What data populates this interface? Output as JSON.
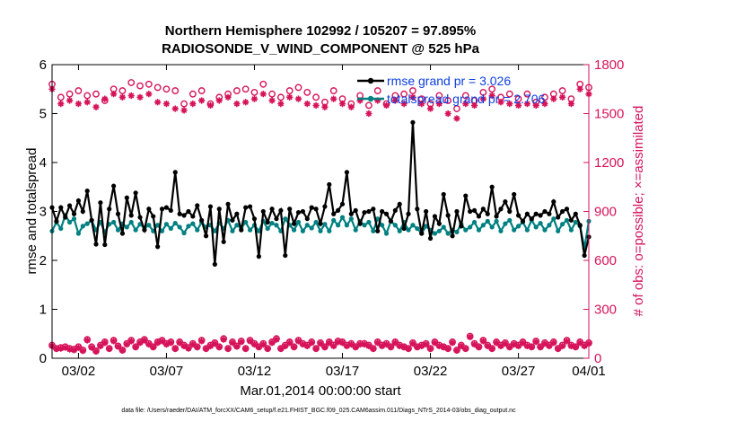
{
  "chart_data": {
    "type": "line",
    "title": [
      "Northern Hemisphere 102992 / 105207 = 97.895%",
      "RADIOSONDE_V_WIND_COMPONENT @ 525 hPa"
    ],
    "xlabel": "Mar.01,2014 00:00:00 start",
    "ylabel_left": "rmse and totalspread",
    "ylabel_right": "# of obs: o=possible; ×=assimilated",
    "xlim": [
      0.5,
      31
    ],
    "ylim_left": [
      0,
      6
    ],
    "ylim_right": [
      0,
      1800
    ],
    "x_ticks": [
      {
        "x": 2,
        "label": "03/02"
      },
      {
        "x": 7,
        "label": "03/07"
      },
      {
        "x": 12,
        "label": "03/12"
      },
      {
        "x": 17,
        "label": "03/17"
      },
      {
        "x": 22,
        "label": "03/22"
      },
      {
        "x": 27,
        "label": "03/27"
      },
      {
        "x": 31,
        "label": "04/01"
      }
    ],
    "y_ticks_left": [
      "0",
      "1",
      "2",
      "3",
      "4",
      "5",
      "6"
    ],
    "y_ticks_right": [
      "0",
      "300",
      "600",
      "900",
      "1200",
      "1500",
      "1800"
    ],
    "legend": [
      "rmse grand pr = 3.026",
      "totalspread grand pr = 2.706"
    ],
    "colors": {
      "rmse": "#000000",
      "spread": "#008080",
      "obs": "#d6135a",
      "legend_text": "#0b3fe0"
    },
    "x": [
      0.5,
      0.75,
      1.0,
      1.25,
      1.5,
      1.75,
      2.0,
      2.25,
      2.5,
      2.75,
      3.0,
      3.25,
      3.5,
      3.75,
      4.0,
      4.25,
      4.5,
      4.75,
      5.0,
      5.25,
      5.5,
      5.75,
      6.0,
      6.25,
      6.5,
      6.75,
      7.0,
      7.25,
      7.5,
      7.75,
      8.0,
      8.25,
      8.5,
      8.75,
      9.0,
      9.25,
      9.5,
      9.75,
      10.0,
      10.25,
      10.5,
      10.75,
      11.0,
      11.25,
      11.5,
      11.75,
      12.0,
      12.25,
      12.5,
      12.75,
      13.0,
      13.25,
      13.5,
      13.75,
      14.0,
      14.25,
      14.5,
      14.75,
      15.0,
      15.25,
      15.5,
      15.75,
      16.0,
      16.25,
      16.5,
      16.75,
      17.0,
      17.25,
      17.5,
      17.75,
      18.0,
      18.25,
      18.5,
      18.75,
      19.0,
      19.25,
      19.5,
      19.75,
      20.0,
      20.25,
      20.5,
      20.75,
      21.0,
      21.25,
      21.5,
      21.75,
      22.0,
      22.25,
      22.5,
      22.75,
      23.0,
      23.25,
      23.5,
      23.75,
      24.0,
      24.25,
      24.5,
      24.75,
      25.0,
      25.25,
      25.5,
      25.75,
      26.0,
      26.25,
      26.5,
      26.75,
      27.0,
      27.25,
      27.5,
      27.75,
      28.0,
      28.25,
      28.5,
      28.75,
      29.0,
      29.25,
      29.5,
      29.75,
      30.0,
      30.25,
      30.5,
      30.75,
      31.0
    ],
    "series": [
      {
        "name": "rmse",
        "axis": "left",
        "values": [
          3.08,
          2.8,
          3.08,
          2.88,
          3.12,
          2.95,
          3.22,
          3.0,
          3.42,
          2.82,
          2.33,
          3.18,
          2.32,
          3.05,
          3.52,
          2.95,
          2.55,
          3.28,
          2.92,
          3.38,
          2.88,
          2.62,
          3.05,
          2.9,
          2.28,
          3.05,
          3.08,
          3.02,
          3.8,
          2.95,
          2.92,
          3.0,
          2.9,
          3.12,
          2.82,
          2.5,
          3.1,
          1.92,
          3.05,
          2.38,
          3.15,
          2.82,
          2.95,
          2.62,
          3.08,
          3.1,
          2.85,
          2.08,
          3.0,
          2.78,
          3.05,
          2.85,
          3.02,
          2.1,
          3.05,
          2.75,
          2.98,
          3.0,
          2.85,
          3.08,
          3.05,
          2.75,
          3.1,
          3.55,
          2.95,
          3.02,
          3.15,
          3.8,
          2.95,
          3.02,
          2.75,
          2.98,
          3.0,
          3.05,
          2.6,
          3.0,
          2.95,
          2.8,
          3.02,
          3.15,
          2.65,
          2.95,
          4.82,
          3.05,
          2.55,
          3.0,
          2.45,
          2.9,
          2.75,
          3.35,
          2.92,
          2.5,
          3.0,
          2.7,
          3.32,
          3.0,
          3.02,
          2.9,
          3.05,
          2.95,
          3.5,
          2.9,
          3.05,
          3.2,
          3.0,
          3.35,
          2.92,
          2.8,
          2.95,
          2.85,
          2.95,
          2.92,
          3.0,
          2.95,
          3.2,
          2.88,
          3.0,
          3.05,
          2.82,
          2.95,
          2.72,
          2.1,
          2.48
        ]
      },
      {
        "name": "totalspread",
        "axis": "left",
        "values": [
          2.6,
          2.78,
          2.65,
          2.92,
          2.78,
          2.85,
          2.55,
          2.7,
          2.75,
          2.82,
          2.62,
          2.78,
          2.58,
          2.74,
          2.78,
          2.62,
          2.75,
          2.68,
          2.78,
          2.62,
          2.74,
          2.66,
          2.72,
          2.6,
          2.72,
          2.6,
          2.74,
          2.65,
          2.76,
          2.68,
          2.56,
          2.7,
          2.75,
          2.62,
          2.78,
          2.68,
          2.72,
          2.6,
          2.76,
          2.65,
          2.82,
          2.6,
          2.72,
          2.66,
          2.78,
          2.62,
          2.72,
          2.6,
          2.8,
          2.65,
          2.76,
          2.72,
          2.6,
          2.85,
          2.72,
          2.62,
          2.78,
          2.6,
          2.72,
          2.66,
          2.78,
          2.6,
          2.74,
          2.6,
          2.82,
          2.72,
          2.88,
          2.72,
          2.85,
          2.62,
          2.8,
          2.72,
          2.78,
          2.6,
          2.85,
          2.72,
          2.55,
          2.8,
          2.72,
          2.6,
          2.78,
          2.62,
          2.72,
          2.65,
          2.55,
          2.7,
          2.62,
          2.55,
          2.6,
          2.68,
          2.55,
          2.62,
          2.58,
          2.74,
          2.62,
          2.68,
          2.78,
          2.62,
          2.72,
          2.8,
          2.68,
          2.8,
          2.6,
          2.75,
          2.82,
          2.62,
          2.7,
          2.78,
          2.62,
          2.82,
          2.68,
          2.76,
          2.62,
          2.72,
          2.85,
          2.6,
          2.74,
          2.82,
          2.62,
          2.78,
          2.7,
          2.25,
          2.8
        ]
      },
      {
        "name": "obs_possible",
        "axis": "right",
        "values": [
          80,
          60,
          65,
          70,
          60,
          55,
          70,
          50,
          115,
          70,
          45,
          80,
          100,
          60,
          110,
          75,
          50,
          90,
          110,
          70,
          100,
          115,
          90,
          70,
          100,
          110,
          90,
          100,
          60,
          100,
          80,
          65,
          90,
          70,
          110,
          60,
          80,
          95,
          70,
          120,
          60,
          100,
          75,
          105,
          60,
          110,
          90,
          70,
          90,
          60,
          100,
          120,
          60,
          80,
          100,
          70,
          110,
          90,
          80,
          100,
          60,
          95,
          70,
          100,
          80,
          105,
          100,
          80,
          90,
          70,
          90,
          90,
          80,
          60,
          100,
          80,
          90,
          70,
          100,
          80,
          70,
          60,
          95,
          70,
          80,
          90,
          60,
          100,
          80,
          70,
          60,
          100,
          50,
          80,
          60,
          135,
          90,
          70,
          110,
          80,
          60,
          100,
          80,
          95,
          70,
          90,
          80,
          100,
          80,
          70,
          105,
          70,
          95,
          80,
          100,
          60,
          80,
          110,
          80,
          70,
          100,
          80,
          95
        ]
      },
      {
        "name": "obs_assimilated",
        "axis": "right",
        "values": [
          75,
          58,
          60,
          65,
          55,
          50,
          65,
          45,
          110,
          65,
          42,
          75,
          95,
          58,
          105,
          72,
          48,
          85,
          105,
          68,
          95,
          110,
          85,
          68,
          95,
          105,
          85,
          95,
          58,
          95,
          75,
          60,
          85,
          68,
          105,
          58,
          75,
          90,
          68,
          115,
          58,
          95,
          72,
          100,
          58,
          105,
          85,
          68,
          85,
          58,
          95,
          115,
          58,
          75,
          95,
          68,
          105,
          85,
          75,
          95,
          58,
          90,
          68,
          95,
          75,
          100,
          95,
          75,
          85,
          68,
          85,
          85,
          75,
          58,
          95,
          75,
          85,
          68,
          95,
          75,
          68,
          58,
          90,
          68,
          75,
          85,
          58,
          95,
          75,
          68,
          58,
          95,
          48,
          75,
          58,
          130,
          85,
          68,
          105,
          75,
          58,
          95,
          75,
          90,
          68,
          85,
          75,
          95,
          75,
          68,
          100,
          68,
          90,
          75,
          95,
          58,
          75,
          105,
          75,
          68,
          95,
          75,
          90
        ]
      },
      {
        "name": "obs_possible_top",
        "axis": "right",
        "x": [
          0.5,
          1.0,
          1.5,
          2.0,
          2.5,
          3.0,
          3.5,
          4.0,
          4.5,
          5.0,
          5.5,
          6.0,
          6.5,
          7.0,
          7.5,
          8.0,
          8.5,
          9.0,
          9.5,
          10.0,
          10.5,
          11.0,
          11.5,
          12.0,
          12.5,
          13.0,
          13.5,
          14.0,
          14.5,
          15.0,
          15.5,
          16.0,
          16.5,
          17.0,
          17.5,
          18.0,
          18.5,
          19.0,
          19.5,
          20.0,
          20.5,
          21.0,
          21.5,
          22.0,
          22.5,
          23.0,
          23.5,
          24.0,
          24.5,
          25.0,
          25.5,
          26.0,
          26.5,
          27.0,
          27.5,
          28.0,
          28.5,
          29.0,
          29.5,
          30.0,
          30.5,
          31.0
        ],
        "values": [
          1680,
          1600,
          1620,
          1640,
          1610,
          1620,
          1580,
          1650,
          1640,
          1690,
          1670,
          1680,
          1660,
          1650,
          1640,
          1560,
          1620,
          1640,
          1560,
          1600,
          1620,
          1640,
          1650,
          1630,
          1680,
          1620,
          1600,
          1640,
          1660,
          1630,
          1600,
          1570,
          1640,
          1590,
          1560,
          1610,
          1550,
          1640,
          1560,
          1610,
          1620,
          1640,
          1590,
          1560,
          1610,
          1580,
          1530,
          1610,
          1580,
          1630,
          1650,
          1600,
          1620,
          1590,
          1620,
          1570,
          1600,
          1620,
          1640,
          1590,
          1680,
          1660
        ]
      },
      {
        "name": "obs_assimilated_top",
        "axis": "right",
        "x": [
          0.5,
          1.0,
          1.5,
          2.0,
          2.5,
          3.0,
          3.5,
          4.0,
          4.5,
          5.0,
          5.5,
          6.0,
          6.5,
          7.0,
          7.5,
          8.0,
          8.5,
          9.0,
          9.5,
          10.0,
          10.5,
          11.0,
          11.5,
          12.0,
          12.5,
          13.0,
          13.5,
          14.0,
          14.5,
          15.0,
          15.5,
          16.0,
          16.5,
          17.0,
          17.5,
          18.0,
          18.5,
          19.0,
          19.5,
          20.0,
          20.5,
          21.0,
          21.5,
          22.0,
          22.5,
          23.0,
          23.5,
          24.0,
          24.5,
          25.0,
          25.5,
          26.0,
          26.5,
          27.0,
          27.5,
          28.0,
          28.5,
          29.0,
          29.5,
          30.0,
          30.5,
          31.0
        ],
        "values": [
          1650,
          1560,
          1580,
          1560,
          1570,
          1540,
          1590,
          1620,
          1600,
          1610,
          1600,
          1620,
          1570,
          1560,
          1530,
          1520,
          1560,
          1580,
          1550,
          1580,
          1600,
          1560,
          1570,
          1590,
          1620,
          1580,
          1560,
          1600,
          1590,
          1560,
          1550,
          1540,
          1590,
          1560,
          1540,
          1580,
          1500,
          1580,
          1550,
          1580,
          1560,
          1600,
          1560,
          1530,
          1560,
          1500,
          1470,
          1560,
          1550,
          1590,
          1610,
          1570,
          1560,
          1550,
          1560,
          1550,
          1560,
          1590,
          1600,
          1560,
          1650,
          1620
        ]
      }
    ],
    "footer": "data file: /Users/raeder/DAI/ATM_forcXX/CAM6_setup/f.e21.FHIST_BGC.f09_025.CAM6assim.011/Diags_NTrS_2014-03/obs_diag_output.nc"
  }
}
